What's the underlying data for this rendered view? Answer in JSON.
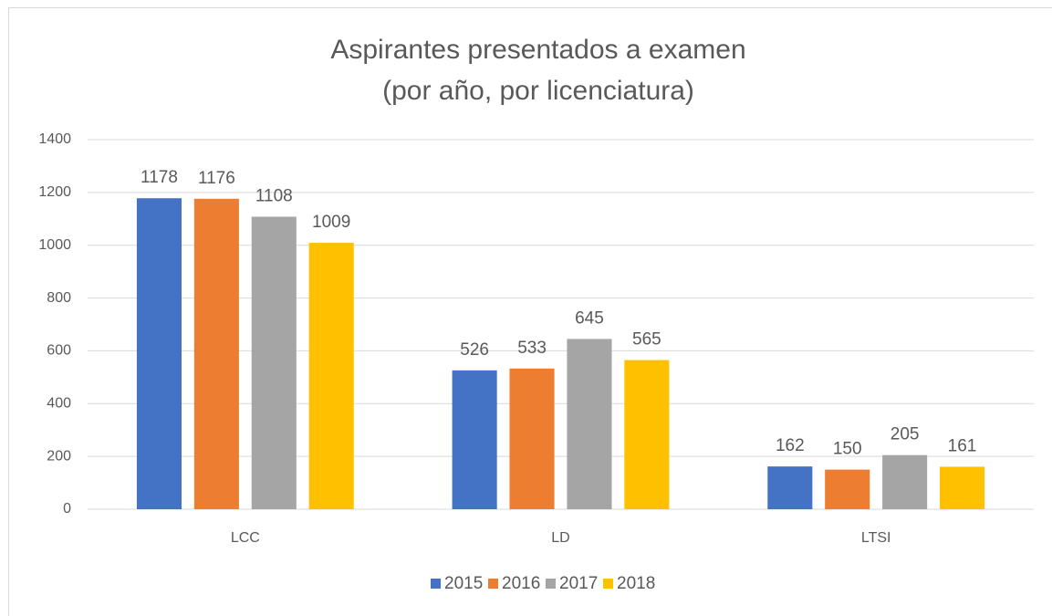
{
  "chart_data": {
    "type": "bar",
    "title": [
      "Aspirantes presentados a examen",
      "(por año, por licenciatura)"
    ],
    "categories": [
      "LCC",
      "LD",
      "LTSI"
    ],
    "series": [
      {
        "name": "2015",
        "color": "#4472c4",
        "values": [
          1178,
          526,
          162
        ]
      },
      {
        "name": "2016",
        "color": "#ed7d31",
        "values": [
          1176,
          533,
          150
        ]
      },
      {
        "name": "2017",
        "color": "#a5a5a5",
        "values": [
          1108,
          645,
          205
        ]
      },
      {
        "name": "2018",
        "color": "#ffc000",
        "values": [
          1009,
          565,
          161
        ]
      }
    ],
    "ylim": [
      0,
      1400
    ],
    "yticks": [
      0,
      200,
      400,
      600,
      800,
      1000,
      1200,
      1400
    ],
    "grid": true,
    "legend": "bottom",
    "data_labels": true
  }
}
